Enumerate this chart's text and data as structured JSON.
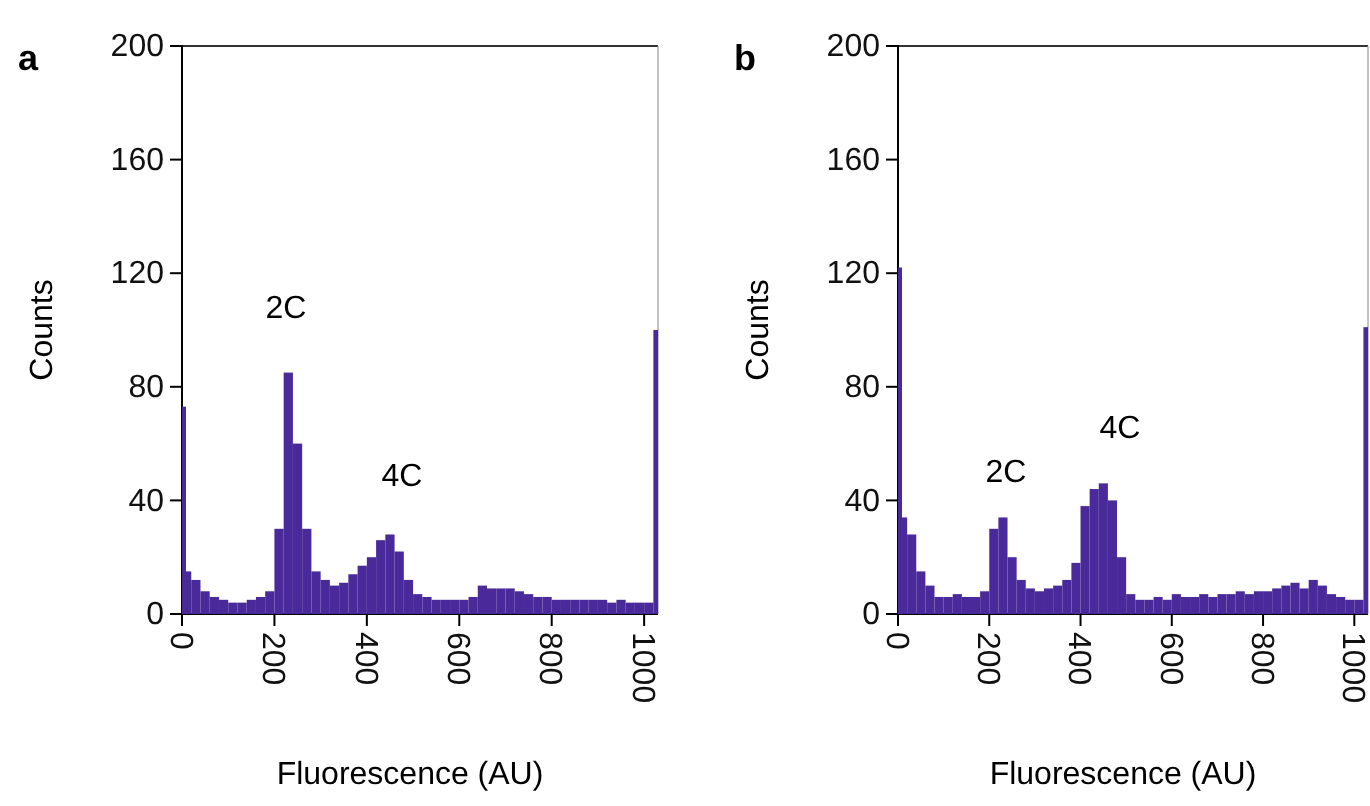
{
  "chart_data": [
    {
      "type": "histogram",
      "title": "a",
      "xlabel": "Fluorescence (AU)",
      "ylabel": "Counts",
      "color": "#4a2a9a",
      "xlim": [
        0,
        1030
      ],
      "ylim": [
        0,
        200
      ],
      "xticks": [
        0,
        200,
        400,
        600,
        800,
        1000
      ],
      "yticks": [
        0,
        40,
        80,
        120,
        160,
        200
      ],
      "bins": [
        0,
        5,
        20,
        40,
        60,
        80,
        100,
        120,
        140,
        160,
        180,
        200,
        220,
        240,
        260,
        280,
        300,
        320,
        340,
        360,
        380,
        400,
        420,
        440,
        460,
        480,
        500,
        520,
        540,
        560,
        580,
        600,
        620,
        640,
        660,
        680,
        700,
        720,
        740,
        760,
        780,
        800,
        820,
        840,
        860,
        880,
        900,
        920,
        940,
        960,
        980,
        1000,
        1020,
        1030
      ],
      "values": [
        73,
        15,
        12,
        8,
        6,
        5,
        4,
        4,
        5,
        6,
        8,
        30,
        85,
        60,
        30,
        15,
        12,
        10,
        11,
        14,
        17,
        20,
        26,
        28,
        22,
        12,
        7,
        6,
        5,
        5,
        5,
        5,
        6,
        10,
        9,
        9,
        9,
        8,
        7,
        6,
        6,
        5,
        5,
        5,
        5,
        5,
        5,
        4,
        5,
        4,
        4,
        4,
        100
      ],
      "annotations": [
        "2C",
        "4C"
      ]
    },
    {
      "type": "histogram",
      "title": "b",
      "xlabel": "Fluorescence (AU)",
      "ylabel": "Counts",
      "color": "#4a2a9a",
      "xlim": [
        0,
        1030
      ],
      "ylim": [
        0,
        200
      ],
      "xticks": [
        0,
        200,
        400,
        600,
        800,
        1000
      ],
      "yticks": [
        0,
        40,
        80,
        120,
        160,
        200
      ],
      "bins": [
        0,
        5,
        20,
        40,
        60,
        80,
        100,
        120,
        140,
        160,
        180,
        200,
        220,
        240,
        260,
        280,
        300,
        320,
        340,
        360,
        380,
        400,
        420,
        440,
        460,
        480,
        500,
        520,
        540,
        560,
        580,
        600,
        620,
        640,
        660,
        680,
        700,
        720,
        740,
        760,
        780,
        800,
        820,
        840,
        860,
        880,
        900,
        920,
        940,
        960,
        980,
        1000,
        1020,
        1030
      ],
      "values": [
        122,
        34,
        28,
        15,
        10,
        6,
        6,
        7,
        6,
        6,
        8,
        30,
        34,
        20,
        12,
        9,
        8,
        9,
        10,
        12,
        18,
        38,
        44,
        46,
        40,
        20,
        7,
        5,
        5,
        6,
        5,
        7,
        6,
        6,
        7,
        6,
        7,
        7,
        8,
        7,
        8,
        8,
        9,
        10,
        11,
        9,
        12,
        10,
        7,
        6,
        5,
        5,
        101
      ],
      "annotations": [
        "2C",
        "4C"
      ]
    }
  ]
}
